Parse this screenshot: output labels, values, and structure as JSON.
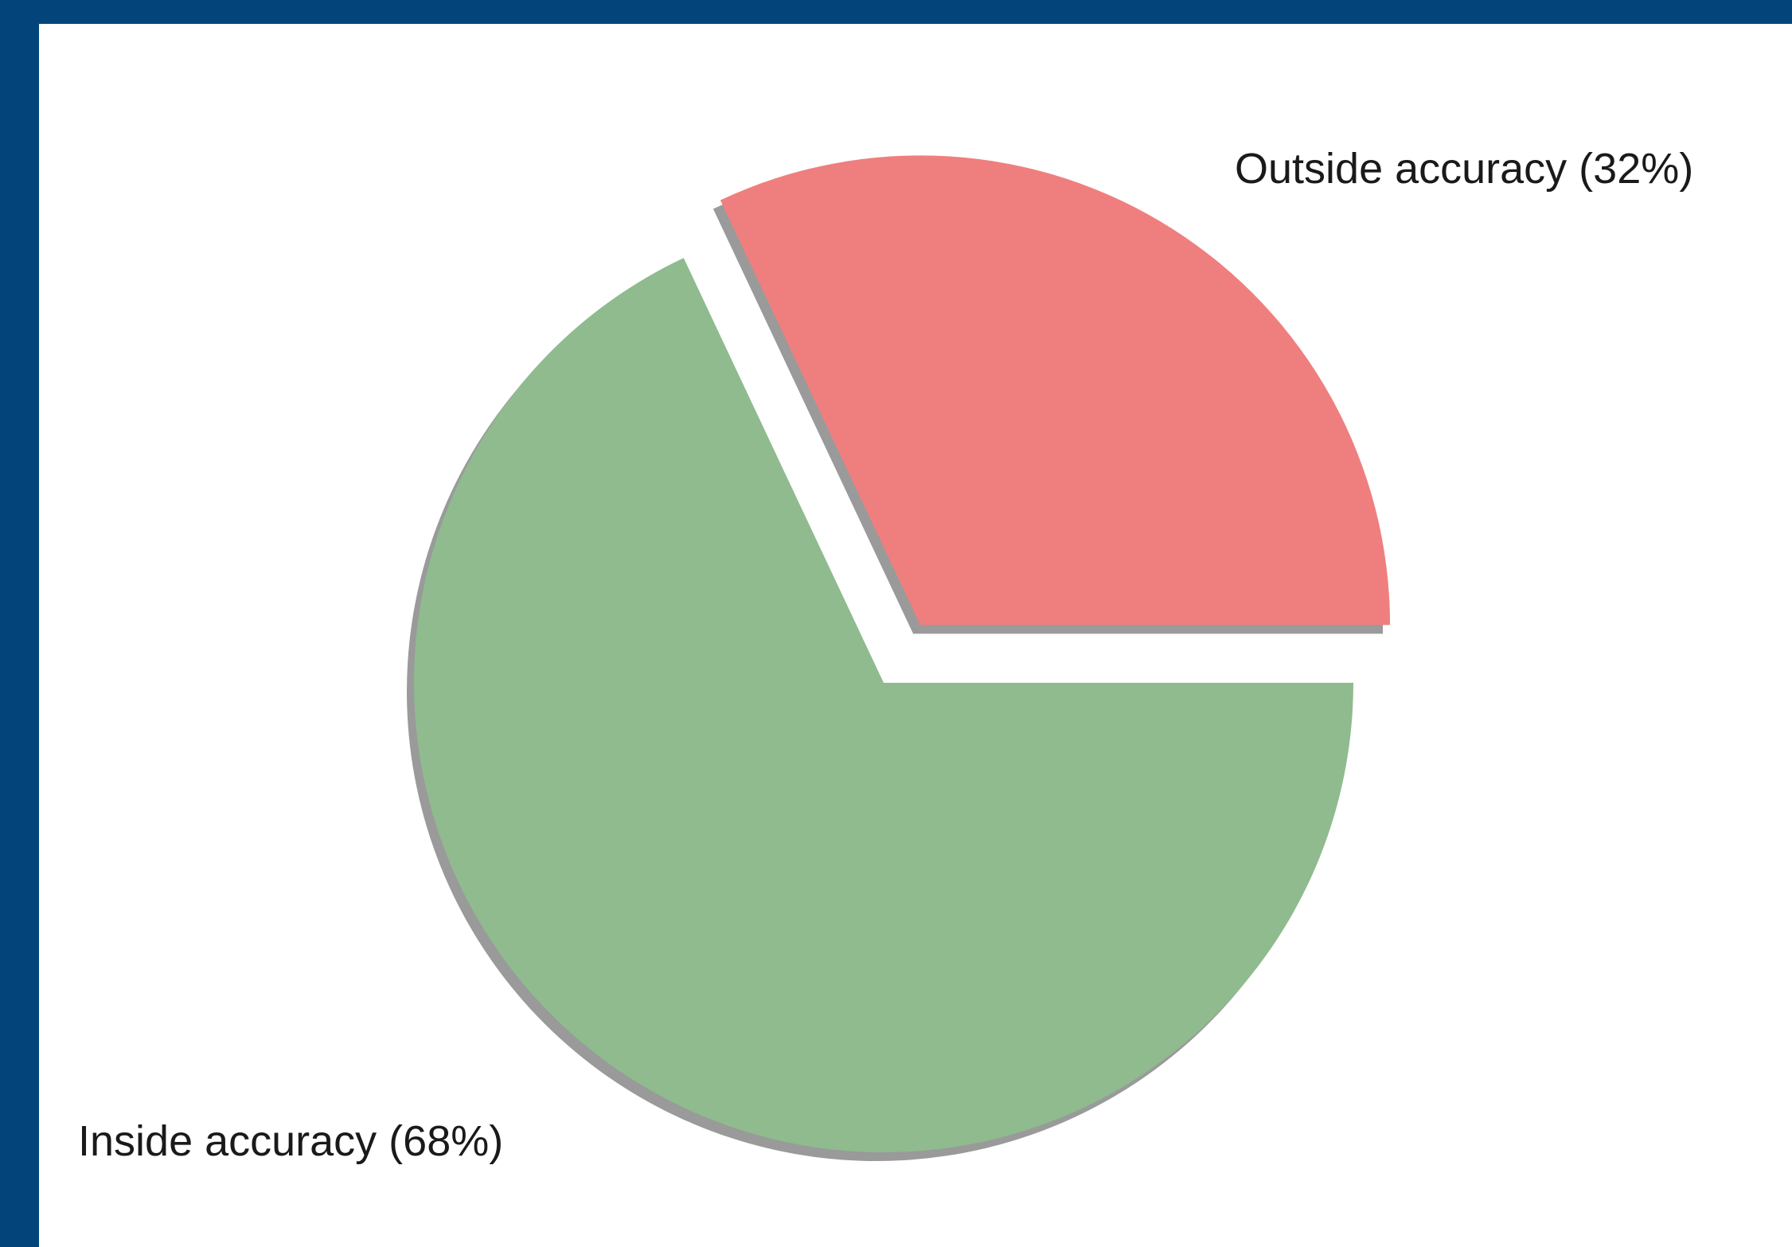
{
  "colors": {
    "frame": "#03457a",
    "panel": "#ffffff",
    "shadow": "#9a9a9a",
    "label_text": "#1a1a1a"
  },
  "chart_data": {
    "type": "pie",
    "title": "",
    "start_angle_deg": 0,
    "direction": "counterclockwise",
    "shadow": true,
    "slices": [
      {
        "label": "Outside accuracy (32%)",
        "value": 32,
        "color": "#ef7f7f",
        "exploded": true,
        "label_position": "top-right"
      },
      {
        "label": "Inside accuracy (68%)",
        "value": 68,
        "color": "#8fbb8f",
        "exploded": false,
        "label_position": "bottom-left"
      }
    ]
  }
}
